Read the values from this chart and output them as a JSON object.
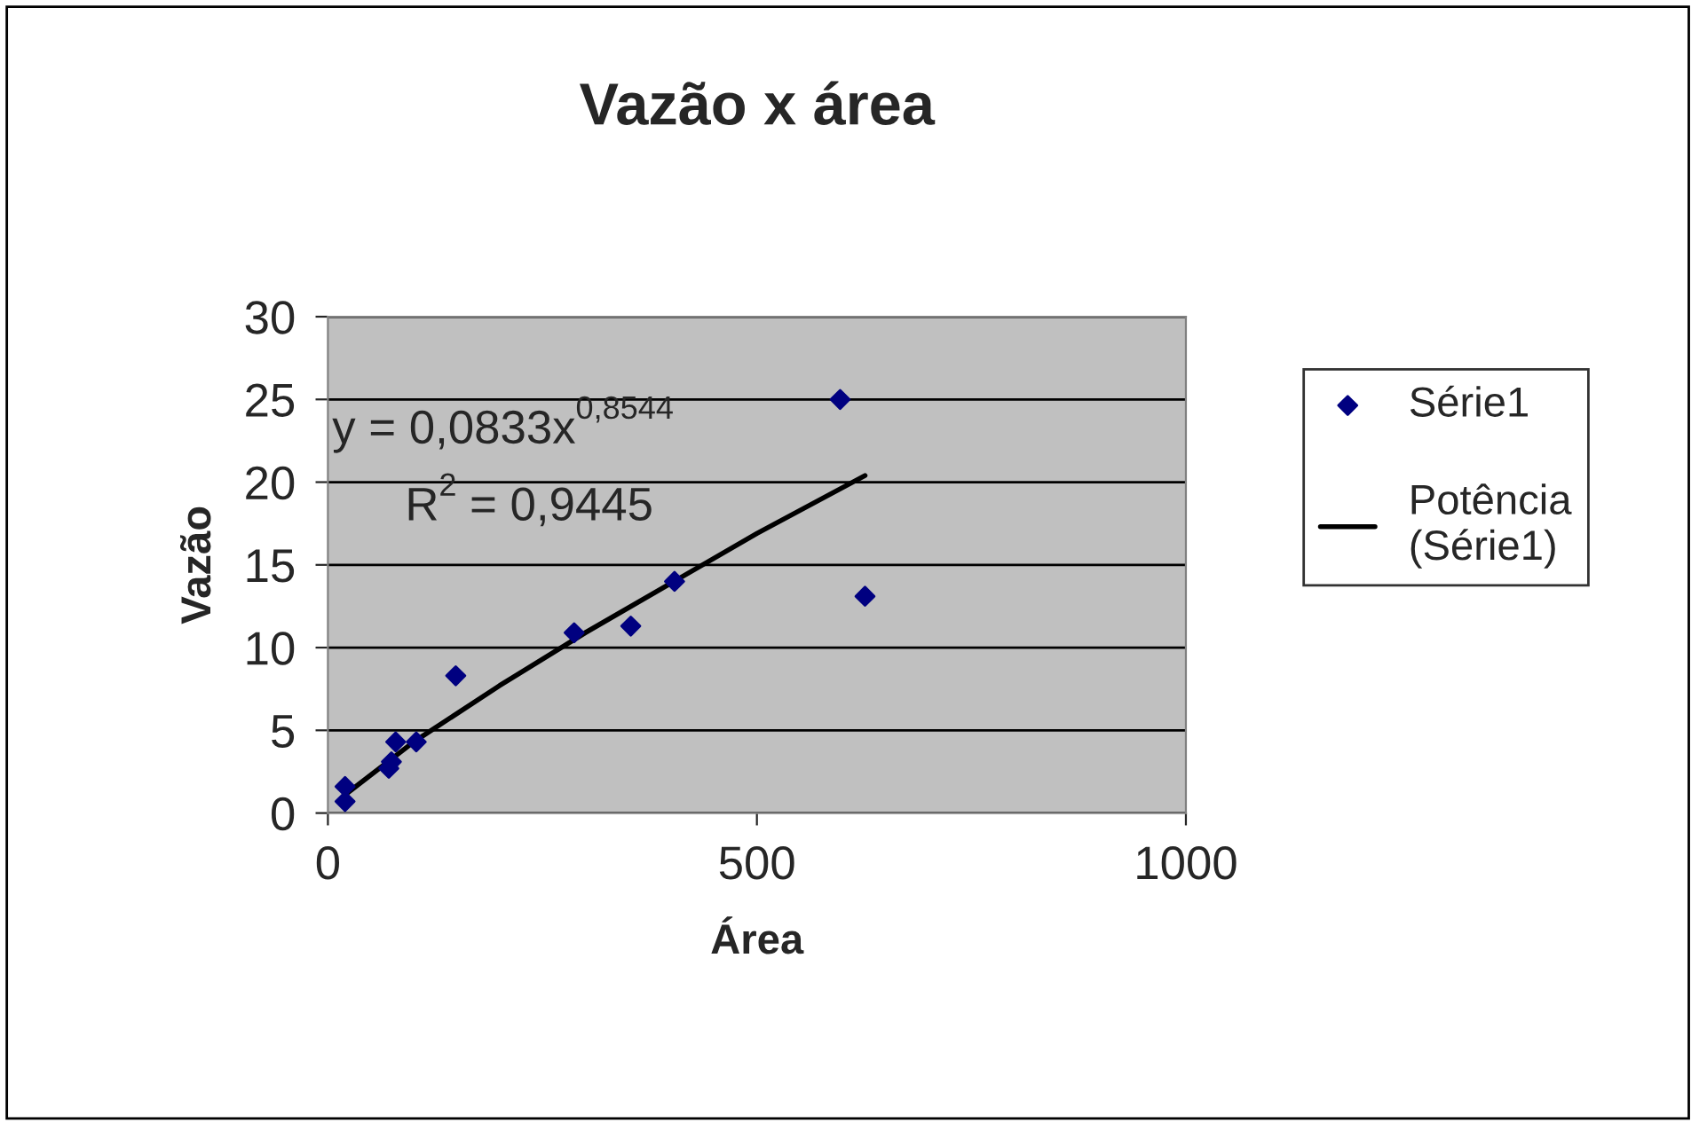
{
  "chart_data": {
    "type": "scatter",
    "title": "Vazão x área",
    "xlabel": "Área",
    "ylabel": "Vazão",
    "series": [
      {
        "name": "Série1",
        "color": "#000080",
        "marker": "diamond",
        "x": [
          20,
          20,
          71,
          74,
          79,
          103,
          149,
          287,
          353,
          404,
          597,
          626
        ],
        "values": [
          0.7,
          1.6,
          2.7,
          3.1,
          4.3,
          4.3,
          8.3,
          10.9,
          11.3,
          14.0,
          25.0,
          13.1
        ]
      },
      {
        "name": "Potência\n(Série1)",
        "type": "line",
        "color": "#000000",
        "line_style": "solid",
        "x": [
          20,
          100,
          200,
          300,
          400,
          500,
          626
        ],
        "values": [
          1.1,
          4.3,
          7.7,
          10.9,
          13.9,
          16.9,
          20.4
        ]
      }
    ],
    "annotations": [
      "y = 0,0833x$^{0,8544}$",
      "R$^{2}$ = 0,9445"
    ],
    "xlim": [
      0,
      1000
    ],
    "ylim": [
      0,
      30
    ],
    "xticks": [
      0,
      500,
      1000
    ],
    "yticks": [
      0,
      5,
      10,
      15,
      20,
      25,
      30
    ],
    "grid": "y",
    "legend": "right"
  }
}
